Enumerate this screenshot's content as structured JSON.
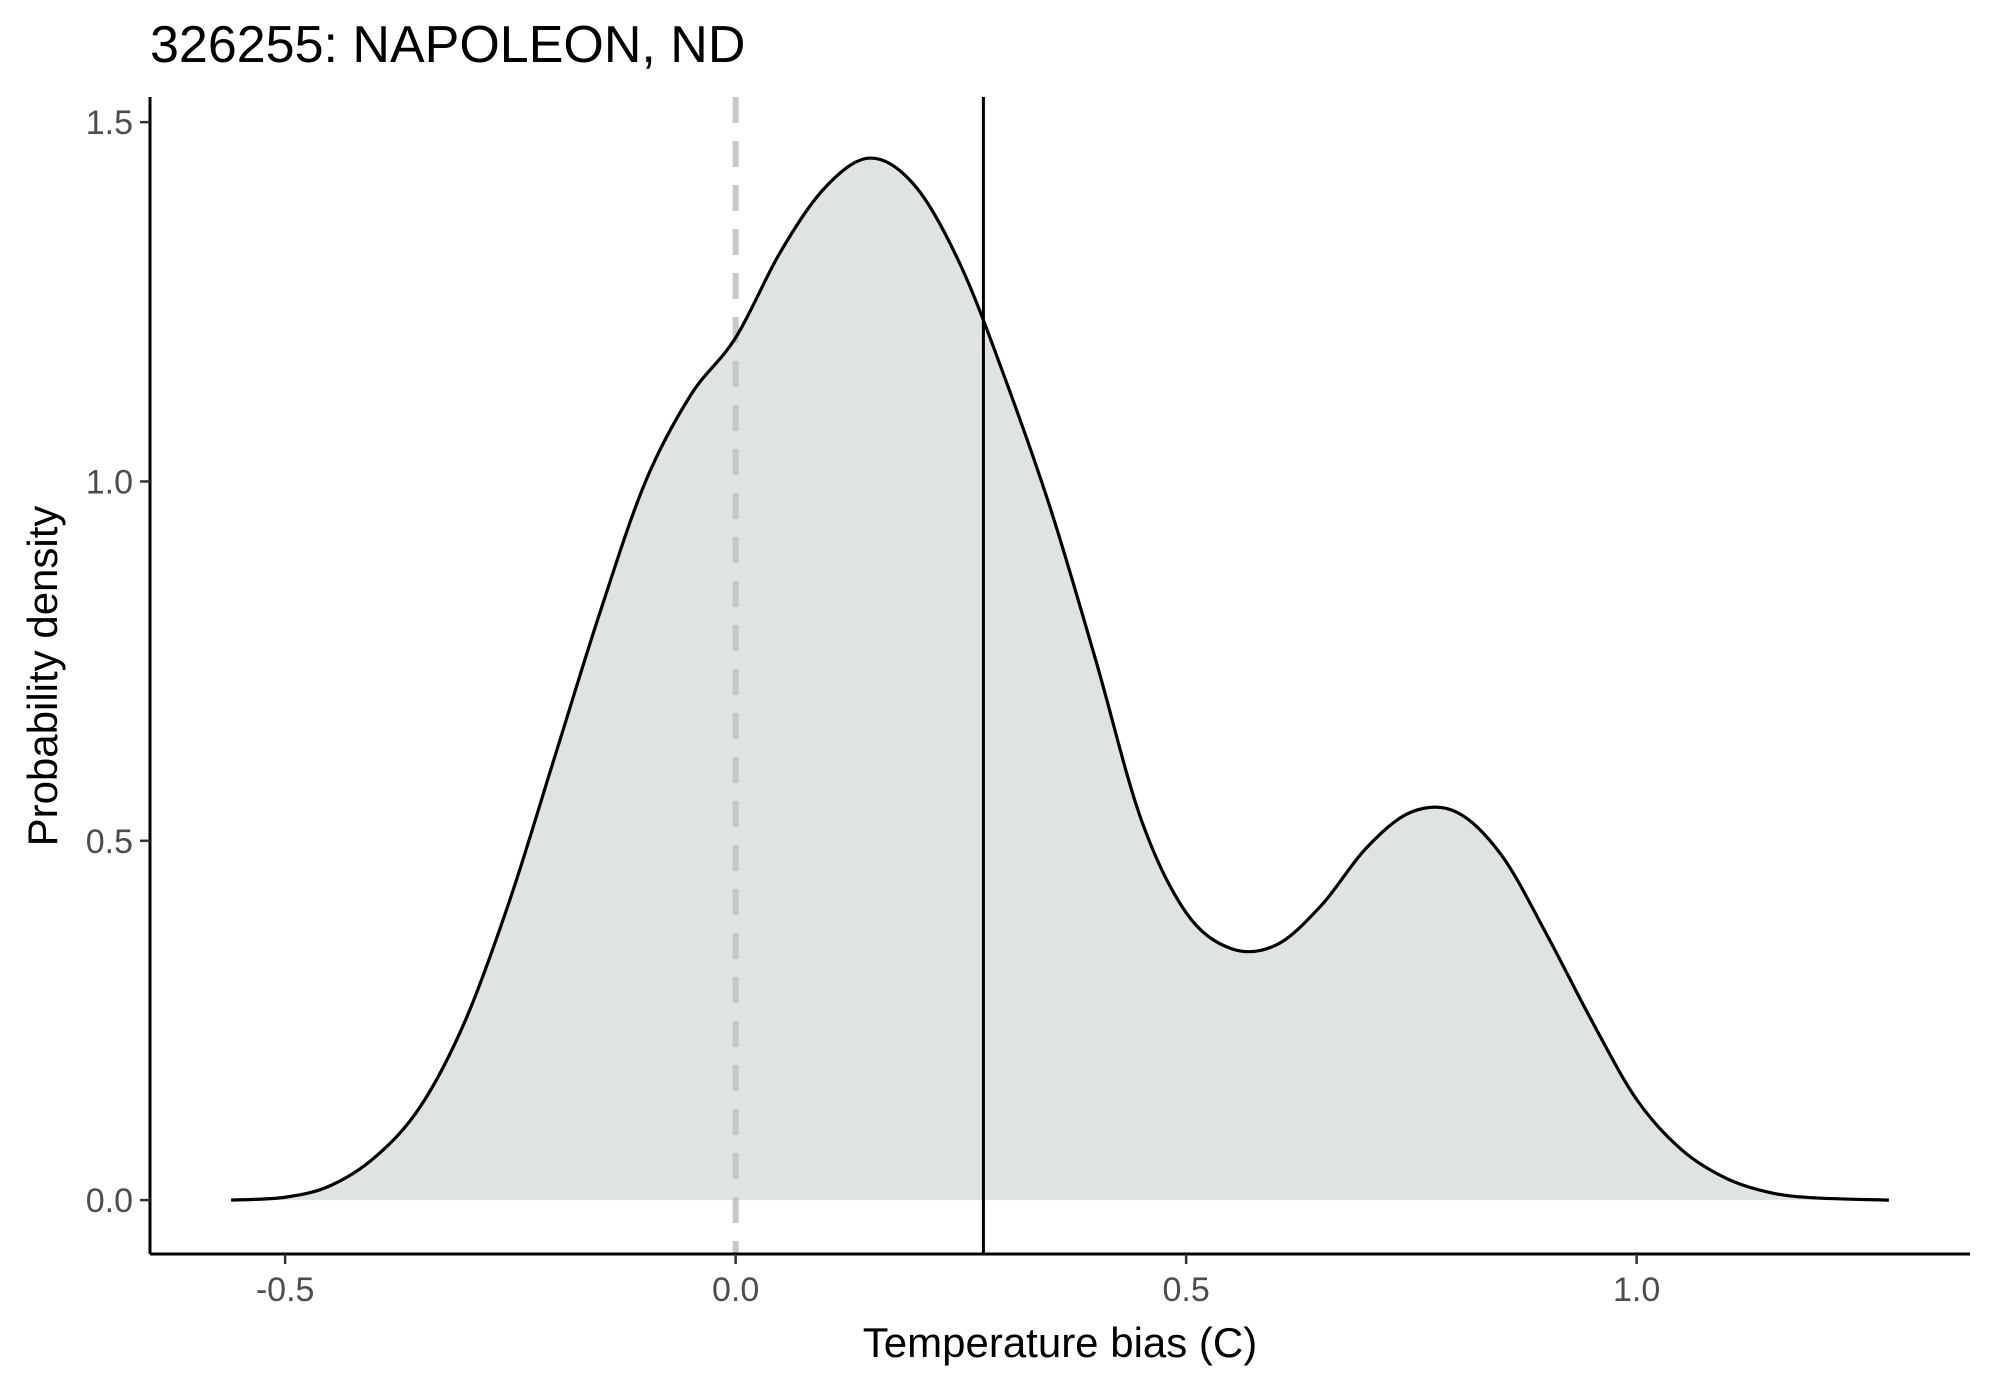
{
  "chart_data": {
    "type": "area",
    "title": "326255: NAPOLEON, ND",
    "xlabel": "Temperature bias (C)",
    "ylabel": "Probability density",
    "xlim": [
      -0.65,
      1.37
    ],
    "ylim": [
      -0.075,
      1.535
    ],
    "x_ticks": [
      -0.5,
      0.0,
      0.5,
      1.0
    ],
    "x_tick_labels": [
      "-0.5",
      "0.0",
      "0.5",
      "1.0"
    ],
    "y_ticks": [
      0.0,
      0.5,
      1.0,
      1.5
    ],
    "y_tick_labels": [
      "0.0",
      "0.5",
      "1.0",
      "1.5"
    ],
    "grid": false,
    "series": [
      {
        "x": [
          -0.56,
          -0.5,
          -0.45,
          -0.4,
          -0.35,
          -0.3,
          -0.25,
          -0.2,
          -0.15,
          -0.1,
          -0.05,
          0.0,
          0.05,
          0.1,
          0.15,
          0.2,
          0.25,
          0.3,
          0.35,
          0.4,
          0.45,
          0.5,
          0.55,
          0.6,
          0.65,
          0.7,
          0.75,
          0.8,
          0.85,
          0.9,
          0.95,
          1.0,
          1.05,
          1.1,
          1.15,
          1.2,
          1.28
        ],
        "y": [
          0.0,
          0.004,
          0.02,
          0.06,
          0.13,
          0.25,
          0.42,
          0.62,
          0.82,
          1.0,
          1.12,
          1.2,
          1.32,
          1.41,
          1.45,
          1.41,
          1.3,
          1.14,
          0.96,
          0.75,
          0.53,
          0.4,
          0.35,
          0.355,
          0.41,
          0.49,
          0.54,
          0.54,
          0.48,
          0.37,
          0.25,
          0.14,
          0.07,
          0.03,
          0.01,
          0.003,
          0.0
        ],
        "fill": "#e0e3e4",
        "line_color": "#000000"
      }
    ],
    "reference_lines": [
      {
        "x": 0.0,
        "style": "dashed",
        "color": "#c8c8c8"
      },
      {
        "x": 0.275,
        "style": "solid",
        "color": "#000000"
      }
    ]
  }
}
